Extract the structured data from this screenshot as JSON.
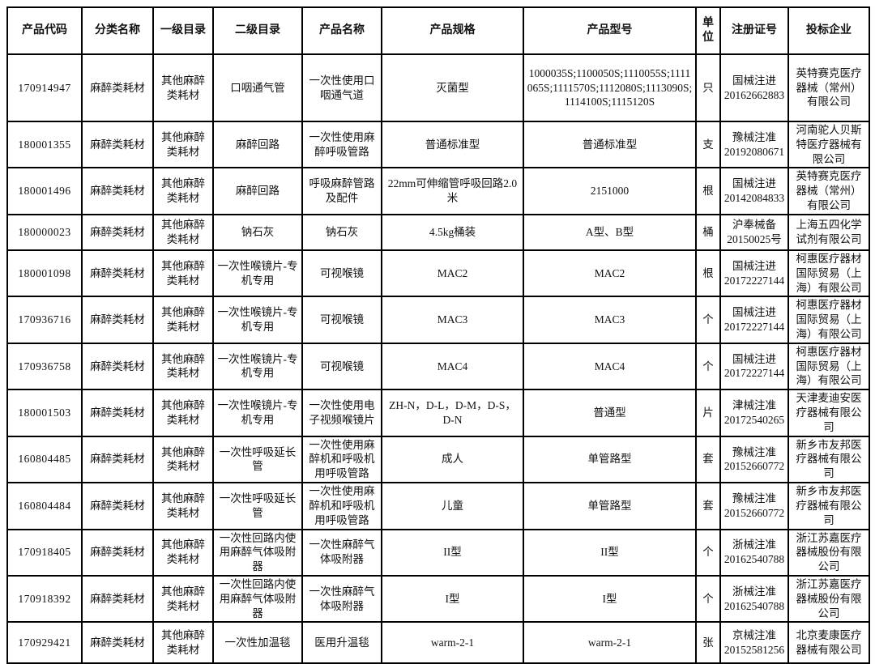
{
  "table": {
    "columns": [
      "产品代码",
      "分类名称",
      "一级目录",
      "二级目录",
      "产品名称",
      "产品规格",
      "产品型号",
      "单位",
      "注册证号",
      "投标企业"
    ],
    "rows": [
      [
        "170914947",
        "麻醉类耗材",
        "其他麻醉类耗材",
        "口咽通气管",
        "一次性使用口咽通气道",
        "灭菌型",
        "1000035S;1100050S;1110055S;1111065S;1111570S;1112080S;1113090S;1114100S;1115120S",
        "只",
        "国械注进\n20162662883",
        "英特赛克医疗器械（常州）有限公司"
      ],
      [
        "180001355",
        "麻醉类耗材",
        "其他麻醉类耗材",
        "麻醉回路",
        "一次性使用麻醉呼吸管路",
        "普通标准型",
        "普通标准型",
        "支",
        "豫械注准\n20192080671",
        "河南驼人贝斯特医疗器械有限公司"
      ],
      [
        "180001496",
        "麻醉类耗材",
        "其他麻醉类耗材",
        "麻醉回路",
        "呼吸麻醉管路及配件",
        "22mm可伸缩管呼吸回路2.0米",
        "2151000",
        "根",
        "国械注进\n20142084833",
        "英特赛克医疗器械（常州）有限公司"
      ],
      [
        "180000023",
        "麻醉类耗材",
        "其他麻醉类耗材",
        "钠石灰",
        "钠石灰",
        "4.5kg桶装",
        "A型、B型",
        "桶",
        "沪奉械备\n20150025号",
        "上海五四化学试剂有限公司"
      ],
      [
        "180001098",
        "麻醉类耗材",
        "其他麻醉类耗材",
        "一次性喉镜片-专机专用",
        "可视喉镜",
        "MAC2",
        "MAC2",
        "根",
        "国械注进\n20172227144",
        "柯惠医疗器材国际贸易（上海）有限公司"
      ],
      [
        "170936716",
        "麻醉类耗材",
        "其他麻醉类耗材",
        "一次性喉镜片-专机专用",
        "可视喉镜",
        "MAC3",
        "MAC3",
        "个",
        "国械注进\n20172227144",
        "柯惠医疗器材国际贸易（上海）有限公司"
      ],
      [
        "170936758",
        "麻醉类耗材",
        "其他麻醉类耗材",
        "一次性喉镜片-专机专用",
        "可视喉镜",
        "MAC4",
        "MAC4",
        "个",
        "国械注进\n20172227144",
        "柯惠医疗器材国际贸易（上海）有限公司"
      ],
      [
        "180001503",
        "麻醉类耗材",
        "其他麻醉类耗材",
        "一次性喉镜片-专机专用",
        "一次性使用电子视频喉镜片",
        "ZH-N，D-L，D-M，D-S，D-N",
        "普通型",
        "片",
        "津械注准\n20172540265",
        "天津麦迪安医疗器械有限公司"
      ],
      [
        "160804485",
        "麻醉类耗材",
        "其他麻醉类耗材",
        "一次性呼吸延长管",
        "一次性使用麻醉机和呼吸机用呼吸管路",
        "成人",
        "单管路型",
        "套",
        "豫械注准\n20152660772",
        "新乡市友邦医疗器械有限公司"
      ],
      [
        "160804484",
        "麻醉类耗材",
        "其他麻醉类耗材",
        "一次性呼吸延长管",
        "一次性使用麻醉机和呼吸机用呼吸管路",
        "儿童",
        "单管路型",
        "套",
        "豫械注准\n20152660772",
        "新乡市友邦医疗器械有限公司"
      ],
      [
        "170918405",
        "麻醉类耗材",
        "其他麻醉类耗材",
        "一次性回路内使用麻醉气体吸附器",
        "一次性麻醉气体吸附器",
        "II型",
        "II型",
        "个",
        "浙械注准\n20162540788",
        "浙江苏嘉医疗器械股份有限公司"
      ],
      [
        "170918392",
        "麻醉类耗材",
        "其他麻醉类耗材",
        "一次性回路内使用麻醉气体吸附器",
        "一次性麻醉气体吸附器",
        "I型",
        "I型",
        "个",
        "浙械注准\n20162540788",
        "浙江苏嘉医疗器械股份有限公司"
      ],
      [
        "170929421",
        "麻醉类耗材",
        "其他麻醉类耗材",
        "一次性加温毯",
        "医用升温毯",
        "warm-2-1",
        "warm-2-1",
        "张",
        "京械注准\n20152581256",
        "北京麦康医疗器械有限公司"
      ]
    ]
  },
  "colors": {
    "border": "#000000",
    "background": "#ffffff",
    "text": "#111111"
  }
}
